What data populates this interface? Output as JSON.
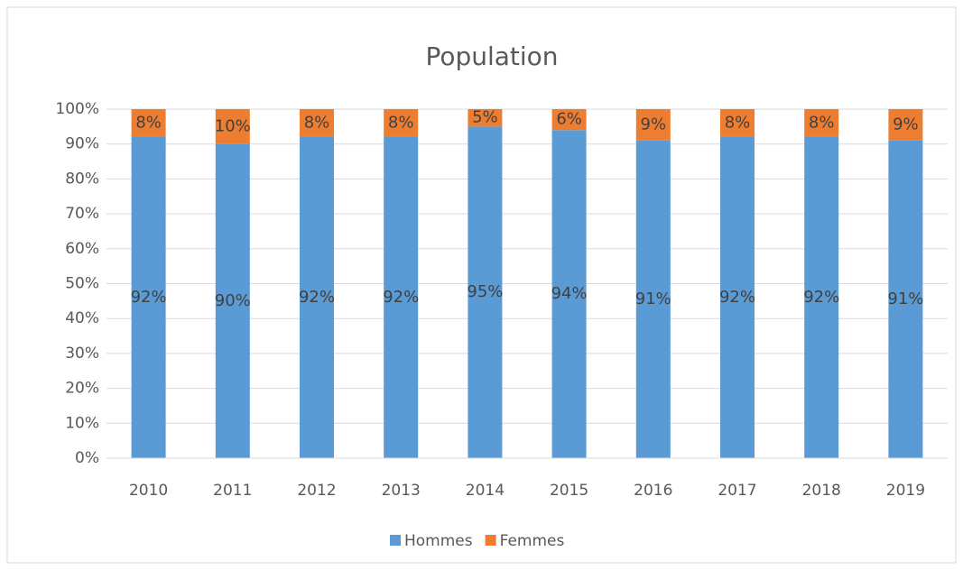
{
  "chart_data": {
    "type": "stacked_bar",
    "title": "Population",
    "categories": [
      "2010",
      "2011",
      "2012",
      "2013",
      "2014",
      "2015",
      "2016",
      "2017",
      "2018",
      "2019"
    ],
    "series": [
      {
        "name": "Hommes",
        "color": "#5b9bd5",
        "values": [
          92,
          90,
          92,
          92,
          95,
          94,
          91,
          92,
          92,
          91
        ],
        "value_labels": [
          "92%",
          "90%",
          "92%",
          "92%",
          "95%",
          "94%",
          "91%",
          "92%",
          "92%",
          "91%"
        ]
      },
      {
        "name": "Femmes",
        "color": "#ed7d31",
        "values": [
          8,
          10,
          8,
          8,
          5,
          6,
          9,
          8,
          8,
          9
        ],
        "value_labels": [
          "8%",
          "10%",
          "8%",
          "8%",
          "5%",
          "6%",
          "9%",
          "8%",
          "8%",
          "9%"
        ]
      }
    ],
    "ylim": [
      0,
      100
    ],
    "yticks": [
      {
        "value": 0,
        "label": "0%"
      },
      {
        "value": 10,
        "label": "10%"
      },
      {
        "value": 20,
        "label": "20%"
      },
      {
        "value": 30,
        "label": "30%"
      },
      {
        "value": 40,
        "label": "40%"
      },
      {
        "value": 50,
        "label": "50%"
      },
      {
        "value": 60,
        "label": "60%"
      },
      {
        "value": 70,
        "label": "70%"
      },
      {
        "value": 80,
        "label": "80%"
      },
      {
        "value": 90,
        "label": "90%"
      },
      {
        "value": 100,
        "label": "100%"
      }
    ],
    "grid": true,
    "legend": "bottom"
  }
}
